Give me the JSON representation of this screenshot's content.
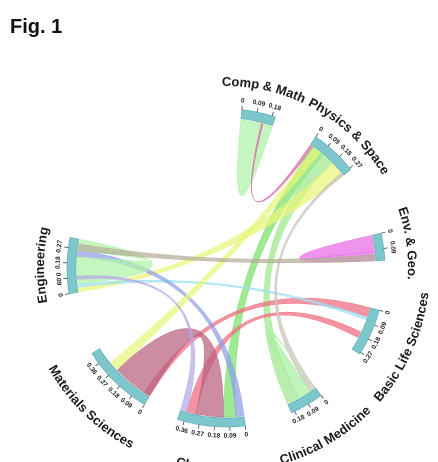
{
  "figure_label": "Fig. 1",
  "chart_data": {
    "type": "chord",
    "title": "",
    "groups": [
      {
        "name": "Comp & Math",
        "start": 0.1,
        "total": 0.2,
        "ticks": [
          "0",
          "0.09",
          "0.18"
        ],
        "color": "#7cc6cc"
      },
      {
        "name": "Physics & Space",
        "start": 0.6,
        "total": 0.28,
        "ticks": [
          "0",
          "0.09",
          "0.18",
          "0.27"
        ],
        "color": "#7cc6cc"
      },
      {
        "name": "Env. & Geo.",
        "start": 1.35,
        "total": 0.16,
        "ticks": [
          "0",
          "0.09"
        ],
        "color": "#7cc6cc"
      },
      {
        "name": "Basic Life Sciences",
        "start": 1.84,
        "total": 0.28,
        "ticks": [
          "0",
          "0.09",
          "0.18",
          "0.27"
        ],
        "color": "#7cc6cc"
      },
      {
        "name": "Clinical Medicine",
        "start": 2.5,
        "total": 0.2,
        "ticks": [
          "0",
          "0.09",
          "0.18"
        ],
        "color": "#7cc6cc"
      },
      {
        "name": "Chemistry",
        "start": 3.02,
        "total": 0.4,
        "ticks": [
          "0",
          "0.09",
          "0.18",
          "0.27",
          "0.36"
        ],
        "color": "#7cc6cc"
      },
      {
        "name": "Materials  Sciences",
        "start": 3.68,
        "total": 0.43,
        "ticks": [
          "0",
          "0.09",
          "0.18",
          "0.27",
          "0.36"
        ],
        "color": "#7cc6cc"
      },
      {
        "name": "Engineering",
        "start": 4.55,
        "total": 0.33,
        "ticks": [
          "0",
          "0.09",
          "0.18",
          "0.27"
        ],
        "color": "#7cc6cc"
      }
    ],
    "chords": [
      {
        "source": [
          0,
          0.0,
          0.13
        ],
        "target": [
          0,
          0.14,
          0.2
        ],
        "color": "#aef2a8"
      },
      {
        "source": [
          0,
          0.13,
          0.14
        ],
        "target": [
          1,
          0.0,
          0.02
        ],
        "color": "#d66aa8"
      },
      {
        "source": [
          1,
          0.02,
          0.1
        ],
        "target": [
          5,
          0.05,
          0.13
        ],
        "color": "#78e068"
      },
      {
        "source": [
          1,
          0.1,
          0.18
        ],
        "target": [
          4,
          0.12,
          0.2
        ],
        "color": "#9fe890"
      },
      {
        "source": [
          1,
          0.18,
          0.28
        ],
        "target": [
          7,
          0.0,
          0.03
        ],
        "color": "#e8f578"
      },
      {
        "source": [
          2,
          0.0,
          0.1
        ],
        "target": [
          2,
          0.1,
          0.16
        ],
        "color": "#e86ae8"
      },
      {
        "source": [
          3,
          0.0,
          0.06
        ],
        "target": [
          6,
          0.0,
          0.04
        ],
        "color": "#f06a7e"
      },
      {
        "source": [
          3,
          0.06,
          0.08
        ],
        "target": [
          7,
          0.03,
          0.05
        ],
        "color": "#9fe0f5"
      },
      {
        "source": [
          3,
          0.16,
          0.2
        ],
        "target": [
          5,
          0.3,
          0.36
        ],
        "color": "#f06a7e"
      },
      {
        "source": [
          4,
          0.0,
          0.04
        ],
        "target": [
          1,
          0.26,
          0.28
        ],
        "color": "#c9c2b8"
      },
      {
        "source": [
          4,
          0.04,
          0.12
        ],
        "target": [
          4,
          0.0,
          0.0
        ],
        "color": "#a9f0a0"
      },
      {
        "source": [
          5,
          0.0,
          0.05
        ],
        "target": [
          7,
          0.22,
          0.26
        ],
        "color": "#8f9fe8"
      },
      {
        "source": [
          5,
          0.13,
          0.3
        ],
        "target": [
          6,
          0.0,
          0.26
        ],
        "color": "#b8607e"
      },
      {
        "source": [
          6,
          0.26,
          0.32
        ],
        "target": [
          1,
          0.03,
          0.08
        ],
        "color": "#e8f578"
      },
      {
        "source": [
          7,
          0.05,
          0.22
        ],
        "target": [
          7,
          0.26,
          0.33
        ],
        "color": "#aef2a8"
      },
      {
        "source": [
          7,
          0.26,
          0.3
        ],
        "target": [
          2,
          0.12,
          0.16
        ],
        "color": "#b5ad9a"
      },
      {
        "source": [
          7,
          0.08,
          0.1
        ],
        "target": [
          5,
          0.36,
          0.4
        ],
        "color": "#b5a8e8"
      }
    ]
  }
}
